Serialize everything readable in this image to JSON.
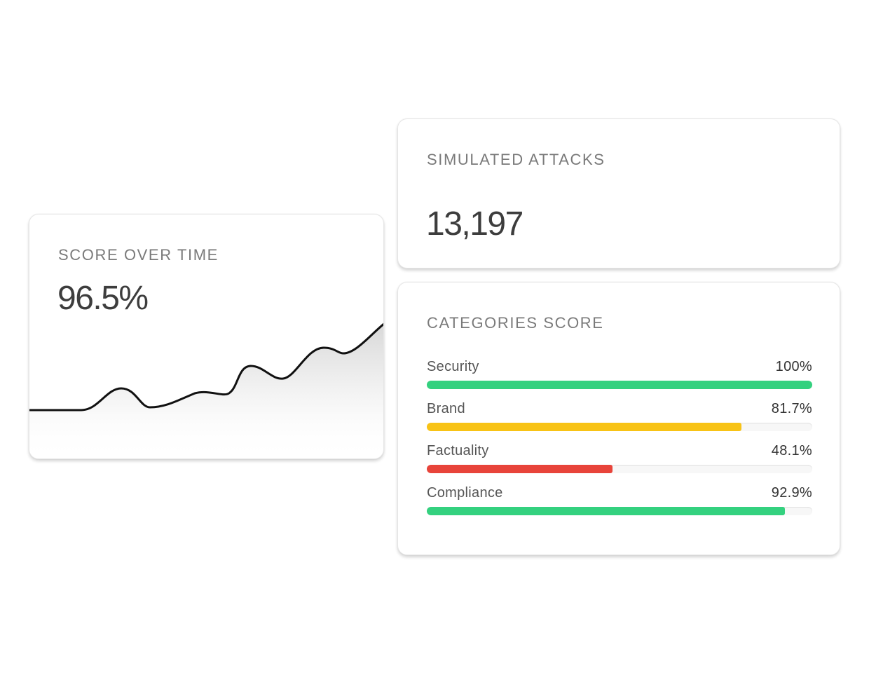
{
  "score_card": {
    "title": "SCORE OVER TIME",
    "value": "96.5%",
    "line_color": "#111111"
  },
  "attacks_card": {
    "title": "SIMULATED ATTACKS",
    "value": "13,197"
  },
  "categories_card": {
    "title": "CATEGORIES SCORE",
    "items": [
      {
        "label": "Security",
        "value_text": "100%",
        "fraction": 1.0,
        "color": "#34d17f"
      },
      {
        "label": "Brand",
        "value_text": "81.7%",
        "fraction": 0.817,
        "color": "#f8c316"
      },
      {
        "label": "Factuality",
        "value_text": "48.1%",
        "fraction": 0.481,
        "color": "#e8443a"
      },
      {
        "label": "Compliance",
        "value_text": "92.9%",
        "fraction": 0.929,
        "color": "#34d17f"
      }
    ]
  }
}
